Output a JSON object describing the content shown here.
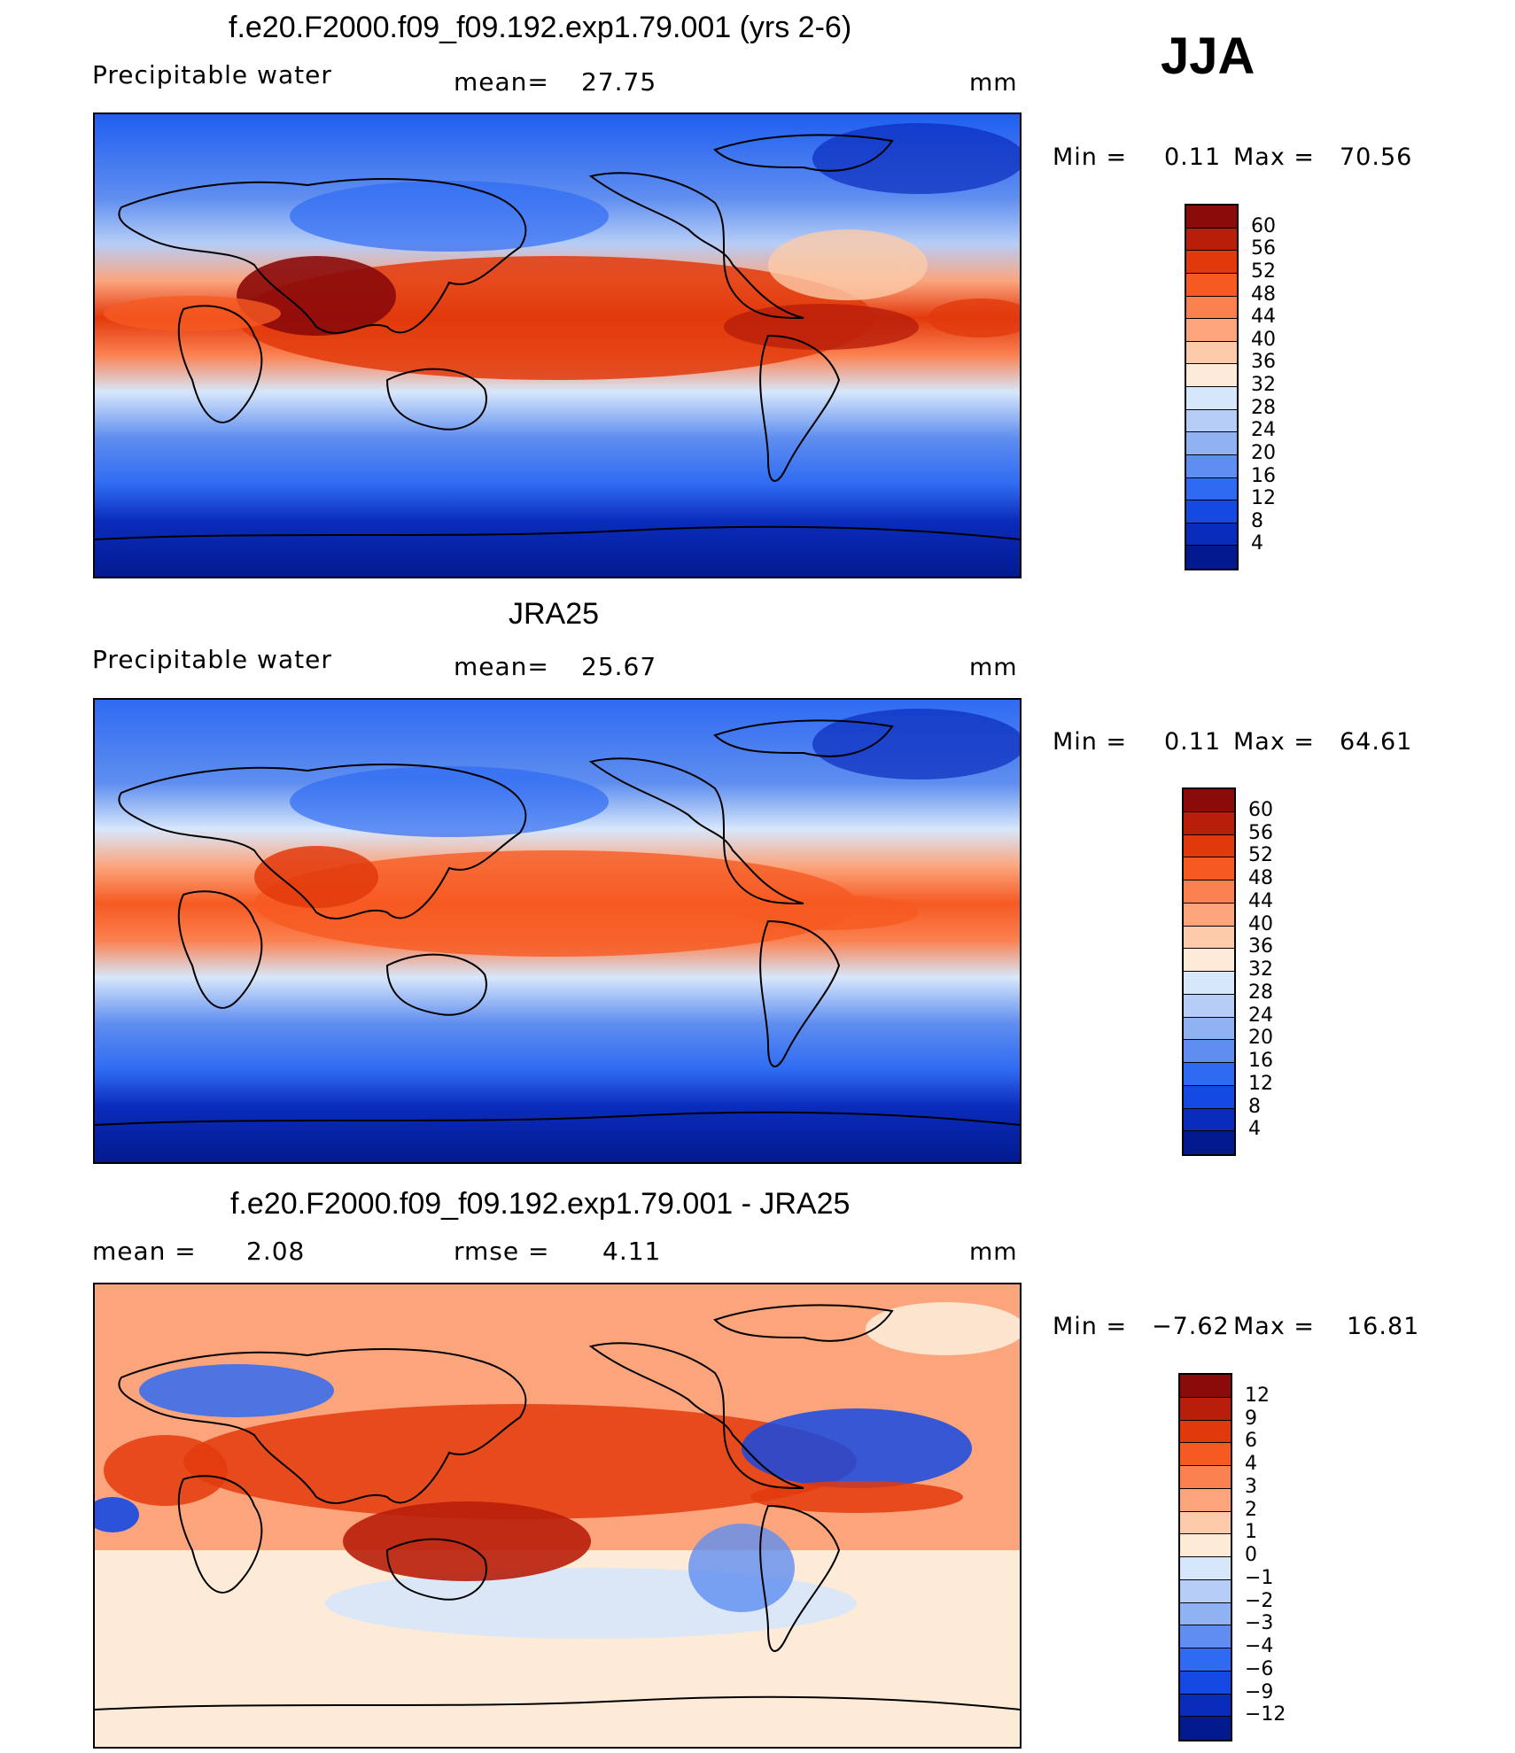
{
  "season": "JJA",
  "panels": [
    {
      "title": "f.e20.F2000.f09_f09.192.exp1.79.001 (yrs 2-6)",
      "left_label": "Precipitable  water",
      "stat_label": "mean=",
      "stat_value": "27.75",
      "units": "mm",
      "min_label": "Min  =",
      "min_value": "0.11",
      "max_label": "Max  =",
      "max_value": "70.56",
      "colorbar_labels": [
        "60",
        "56",
        "52",
        "48",
        "44",
        "40",
        "36",
        "32",
        "28",
        "24",
        "20",
        "16",
        "12",
        "8",
        "4"
      ],
      "colors": [
        "#8b0a0a",
        "#b81e0a",
        "#e2390c",
        "#f65a22",
        "#fb8050",
        "#fca57d",
        "#fdcaa9",
        "#fdebd8",
        "#d7e7fb",
        "#b6cdf7",
        "#8fb2f3",
        "#5f8ef0",
        "#2f6bf2",
        "#1549e3",
        "#0a2cbc",
        "#031a8f"
      ]
    },
    {
      "title": "JRA25",
      "left_label": "Precipitable  water",
      "stat_label": "mean=",
      "stat_value": "25.67",
      "units": "mm",
      "min_label": "Min  =",
      "min_value": "0.11",
      "max_label": "Max  =",
      "max_value": "64.61",
      "colorbar_labels": [
        "60",
        "56",
        "52",
        "48",
        "44",
        "40",
        "36",
        "32",
        "28",
        "24",
        "20",
        "16",
        "12",
        "8",
        "4"
      ],
      "colors": [
        "#8b0a0a",
        "#b81e0a",
        "#e2390c",
        "#f65a22",
        "#fb8050",
        "#fca57d",
        "#fdcaa9",
        "#fdebd8",
        "#d7e7fb",
        "#b6cdf7",
        "#8fb2f3",
        "#5f8ef0",
        "#2f6bf2",
        "#1549e3",
        "#0a2cbc",
        "#031a8f"
      ]
    },
    {
      "title": "f.e20.F2000.f09_f09.192.exp1.79.001 - JRA25",
      "left_label": "mean  =",
      "left_value": "2.08",
      "stat_label": "rmse  =",
      "stat_value": "4.11",
      "units": "mm",
      "min_label": "Min  =",
      "min_value": "−7.62",
      "max_label": "Max  =",
      "max_value": "16.81",
      "colorbar_labels": [
        "12",
        "9",
        "6",
        "4",
        "3",
        "2",
        "1",
        "0",
        "−1",
        "−2",
        "−3",
        "−4",
        "−6",
        "−9",
        "−12"
      ],
      "colors": [
        "#8b0a0a",
        "#b81e0a",
        "#e2390c",
        "#f65a22",
        "#fb8050",
        "#fca57d",
        "#fdcaa9",
        "#fdebd8",
        "#d7e7fb",
        "#b6cdf7",
        "#8fb2f3",
        "#5f8ef0",
        "#2f6bf2",
        "#1549e3",
        "#0a2cbc",
        "#031a8f"
      ]
    }
  ]
}
